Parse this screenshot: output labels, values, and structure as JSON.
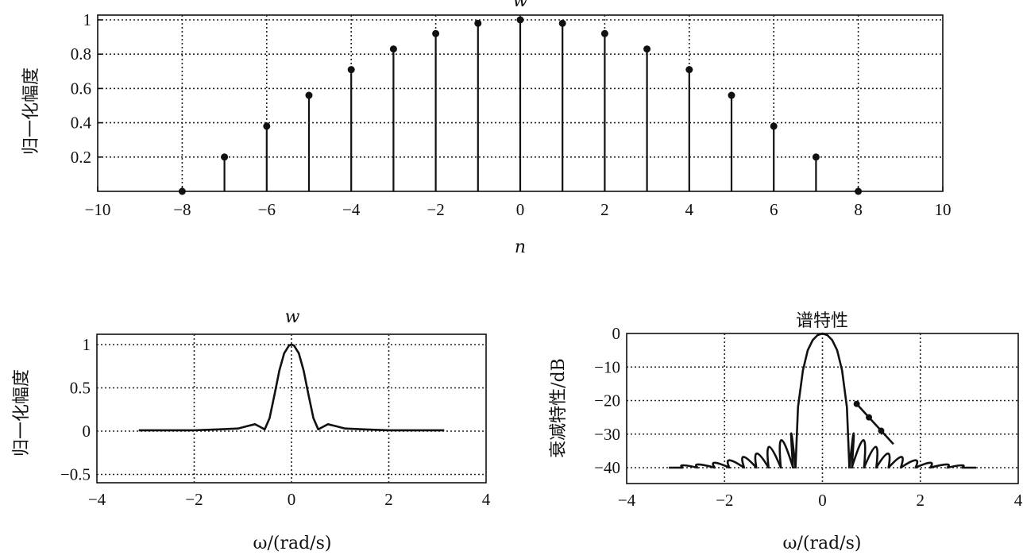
{
  "chart_data": [
    {
      "type": "stem",
      "title": "w",
      "xlabel": "n",
      "ylabel": "归一化幅度",
      "xlim": [
        -10,
        10
      ],
      "ylim": [
        0,
        1.05
      ],
      "grid": true,
      "xticks": [
        "−10",
        "−8",
        "−6",
        "−4",
        "−2",
        "0",
        "2",
        "4",
        "6",
        "8",
        "10"
      ],
      "yticks": [
        "0.2",
        "0.4",
        "0.6",
        "0.8",
        "1"
      ],
      "x": [
        -8,
        -7,
        -6,
        -5,
        -4,
        -3,
        -2,
        -1,
        0,
        1,
        2,
        3,
        4,
        5,
        6,
        7,
        8
      ],
      "y": [
        0.0,
        0.2,
        0.38,
        0.56,
        0.71,
        0.83,
        0.92,
        0.98,
        1.0,
        0.98,
        0.92,
        0.83,
        0.71,
        0.56,
        0.38,
        0.2,
        0.0
      ]
    },
    {
      "type": "line",
      "title": "w",
      "xlabel": "ω/(rad/s)",
      "ylabel": "归一化幅度",
      "xlim": [
        -4,
        4
      ],
      "ylim": [
        -0.6,
        1.05
      ],
      "grid": true,
      "xticks": [
        "−4",
        "−2",
        "0",
        "2",
        "4"
      ],
      "yticks": [
        "−0.5",
        "0",
        "0.5",
        "1"
      ],
      "x": [
        -3.14,
        -2.5,
        -2.0,
        -1.5,
        -1.1,
        -0.9,
        -0.75,
        -0.65,
        -0.55,
        -0.45,
        -0.35,
        -0.25,
        -0.15,
        -0.05,
        0,
        0.05,
        0.15,
        0.25,
        0.35,
        0.45,
        0.55,
        0.65,
        0.75,
        0.9,
        1.1,
        1.5,
        2.0,
        2.5,
        3.14
      ],
      "y": [
        0.01,
        0.01,
        0.01,
        0.02,
        0.03,
        0.06,
        0.08,
        0.05,
        0.02,
        0.15,
        0.42,
        0.7,
        0.9,
        0.99,
        1.0,
        0.99,
        0.9,
        0.7,
        0.42,
        0.15,
        0.02,
        0.05,
        0.08,
        0.06,
        0.03,
        0.02,
        0.01,
        0.01,
        0.01
      ]
    },
    {
      "type": "line",
      "title": "谱特性",
      "xlabel": "ω/(rad/s)",
      "ylabel": "衰减特性/dB",
      "xlim": [
        -4,
        4
      ],
      "ylim": [
        -45,
        0
      ],
      "grid": true,
      "xticks": [
        "−4",
        "−2",
        "0",
        "2",
        "4"
      ],
      "yticks": [
        "−40",
        "−30",
        "−20",
        "−10",
        "0"
      ],
      "mainlobe": {
        "x": [
          -0.55,
          -0.5,
          -0.4,
          -0.3,
          -0.2,
          -0.1,
          0,
          0.1,
          0.2,
          0.3,
          0.4,
          0.5,
          0.55
        ],
        "y": [
          -40,
          -22,
          -11,
          -5,
          -2,
          -0.5,
          0,
          -0.5,
          -2,
          -5,
          -11,
          -22,
          -40
        ]
      },
      "sidelobe_peaks": {
        "x": [
          0.7,
          0.95,
          1.2,
          1.45,
          1.75,
          2.05,
          2.35,
          2.7,
          3.0
        ],
        "y": [
          -21,
          -25,
          -29,
          -33,
          -35,
          -37,
          -38.5,
          -39.5,
          -40
        ]
      },
      "nulls": [
        0.6,
        0.85,
        1.1,
        1.35,
        1.6,
        1.9,
        2.2,
        2.55,
        2.85
      ],
      "floor": -40
    }
  ]
}
